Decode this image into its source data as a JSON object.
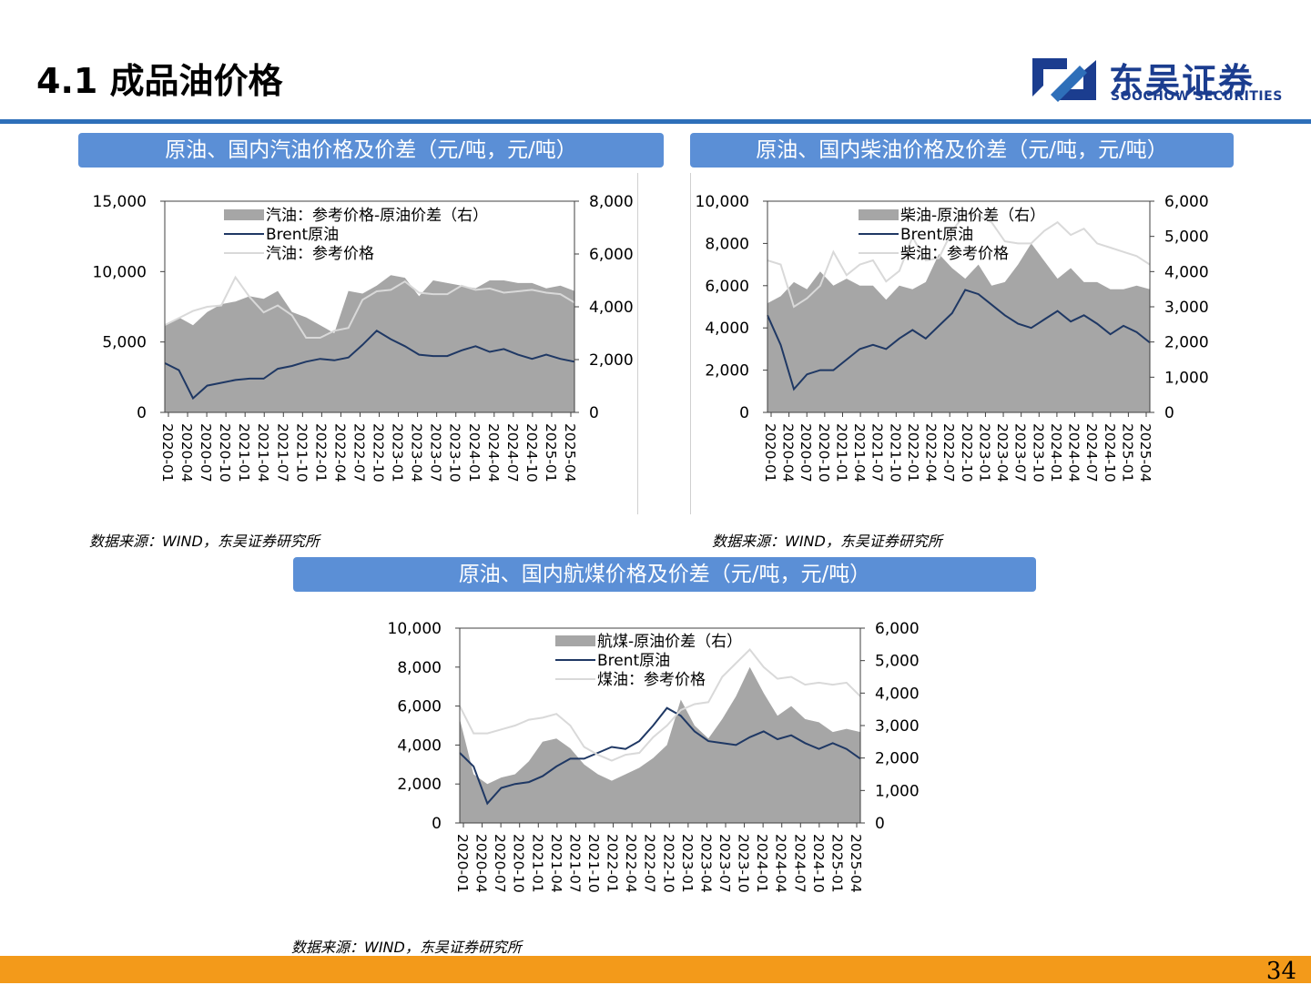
{
  "page": {
    "title": "4.1 成品油价格",
    "page_number": "34"
  },
  "logo": {
    "cn": "东吴证券",
    "en": "SOOCHOW SECURITIES",
    "colors": {
      "brand": "#1b3d8f",
      "accent": "#2e6fb9"
    }
  },
  "colors": {
    "header_bg": "#5b8fd6",
    "footer": "#f39a1a",
    "spread_fill": "#a6a6a6",
    "brent_line": "#1f3864",
    "product_line": "#d9d9d9"
  },
  "panels": [
    {
      "header": "原油、国内汽油价格及价差（元/吨，元/吨）",
      "source": "数据来源：WIND，东吴证券研究所"
    },
    {
      "header": "原油、国内柴油价格及价差（元/吨，元/吨）",
      "source": "数据来源：WIND，东吴证券研究所"
    },
    {
      "header": "原油、国内航煤价格及价差（元/吨，元/吨）",
      "source": "数据来源：WIND，东吴证券研究所"
    }
  ],
  "chart_data": [
    {
      "type": "line",
      "x_labels": [
        "2020-01",
        "2020-04",
        "2020-07",
        "2020-10",
        "2021-01",
        "2021-04",
        "2021-07",
        "2021-10",
        "2022-01",
        "2022-04",
        "2022-07",
        "2022-10",
        "2023-01",
        "2023-04",
        "2023-07",
        "2023-10",
        "2024-01",
        "2024-04",
        "2024-07",
        "2024-10",
        "2025-01",
        "2025-04"
      ],
      "left_axis": {
        "ylim": [
          0,
          15000
        ],
        "ticks": [
          "0",
          "5,000",
          "10,000",
          "15,000"
        ]
      },
      "right_axis": {
        "ylim": [
          0,
          8000
        ],
        "ticks": [
          "0",
          "2,000",
          "4,000",
          "6,000",
          "8,000"
        ]
      },
      "series": [
        {
          "name": "汽油：参考价格-原油价差（右）",
          "kind": "area",
          "axis": "right",
          "values": [
            3300,
            3600,
            3300,
            3800,
            4100,
            4200,
            4400,
            4300,
            4600,
            3800,
            3600,
            3300,
            3000,
            4600,
            4500,
            4800,
            5200,
            5100,
            4400,
            5000,
            4900,
            4800,
            4700,
            5000,
            5000,
            4900,
            4900,
            4700,
            4800,
            4600
          ]
        },
        {
          "name": "Brent原油",
          "kind": "line",
          "axis": "left",
          "values": [
            3500,
            3000,
            1000,
            1900,
            2100,
            2300,
            2400,
            2400,
            3100,
            3300,
            3600,
            3800,
            3700,
            3900,
            4800,
            5800,
            5200,
            4700,
            4100,
            4000,
            4000,
            4400,
            4700,
            4300,
            4500,
            4100,
            3800,
            4100,
            3800,
            3600
          ]
        },
        {
          "name": "汽油：参考价格",
          "kind": "line",
          "axis": "left",
          "values": [
            6200,
            6700,
            7200,
            7500,
            7600,
            9600,
            8200,
            7100,
            7600,
            6900,
            5300,
            5300,
            5800,
            6000,
            8000,
            8600,
            8700,
            9300,
            8500,
            8400,
            8400,
            9000,
            8700,
            8800,
            8500,
            8600,
            8700,
            8500,
            8400,
            7800
          ]
        }
      ]
    },
    {
      "type": "line",
      "x_labels": [
        "2020-01",
        "2020-04",
        "2020-07",
        "2020-10",
        "2021-01",
        "2021-04",
        "2021-07",
        "2021-10",
        "2022-01",
        "2022-04",
        "2022-07",
        "2022-10",
        "2023-01",
        "2023-04",
        "2023-07",
        "2023-10",
        "2024-01",
        "2024-04",
        "2024-07",
        "2024-10",
        "2025-01",
        "2025-04"
      ],
      "left_axis": {
        "ylim": [
          0,
          10000
        ],
        "ticks": [
          "0",
          "2,000",
          "4,000",
          "6,000",
          "8,000",
          "10,000"
        ]
      },
      "right_axis": {
        "ylim": [
          0,
          6000
        ],
        "ticks": [
          "0",
          "1,000",
          "2,000",
          "3,000",
          "4,000",
          "5,000",
          "6,000"
        ]
      },
      "series": [
        {
          "name": "柴油-原油价差（右）",
          "kind": "area",
          "axis": "right",
          "values": [
            3100,
            3300,
            3700,
            3500,
            4000,
            3600,
            3800,
            3600,
            3600,
            3200,
            3600,
            3500,
            3700,
            4500,
            4100,
            3800,
            4200,
            3600,
            3700,
            4200,
            4800,
            4300,
            3800,
            4100,
            3700,
            3700,
            3500,
            3500,
            3600,
            3500
          ]
        },
        {
          "name": "Brent原油",
          "kind": "line",
          "axis": "left",
          "values": [
            4600,
            3200,
            1100,
            1800,
            2000,
            2000,
            2500,
            3000,
            3200,
            3000,
            3500,
            3900,
            3500,
            4100,
            4700,
            5800,
            5600,
            5100,
            4600,
            4200,
            4000,
            4400,
            4800,
            4300,
            4600,
            4200,
            3700,
            4100,
            3800,
            3300
          ]
        },
        {
          "name": "柴油：参考价格",
          "kind": "line",
          "axis": "left",
          "values": [
            7200,
            7000,
            5000,
            5400,
            6000,
            7600,
            6500,
            7000,
            7200,
            6200,
            6700,
            8300,
            7200,
            7300,
            8600,
            9400,
            9300,
            9000,
            8100,
            8000,
            8000,
            8600,
            9000,
            8400,
            8700,
            8000,
            7800,
            7600,
            7400,
            7000
          ]
        }
      ]
    },
    {
      "type": "line",
      "x_labels": [
        "2020-01",
        "2020-04",
        "2020-07",
        "2020-10",
        "2021-01",
        "2021-04",
        "2021-07",
        "2021-10",
        "2022-01",
        "2022-04",
        "2022-07",
        "2022-10",
        "2023-01",
        "2023-04",
        "2023-07",
        "2023-10",
        "2024-01",
        "2024-04",
        "2024-07",
        "2024-10",
        "2025-01",
        "2025-04"
      ],
      "left_axis": {
        "ylim": [
          0,
          10000
        ],
        "ticks": [
          "0",
          "2,000",
          "4,000",
          "6,000",
          "8,000",
          "10,000"
        ]
      },
      "right_axis": {
        "ylim": [
          0,
          6000
        ],
        "ticks": [
          "0",
          "1,000",
          "2,000",
          "3,000",
          "4,000",
          "5,000",
          "6,000"
        ]
      },
      "series": [
        {
          "name": "航煤-原油价差（右）",
          "kind": "area",
          "axis": "right",
          "values": [
            3200,
            1500,
            1200,
            1400,
            1500,
            1900,
            2500,
            2600,
            2300,
            1800,
            1500,
            1300,
            1500,
            1700,
            2000,
            2400,
            3800,
            3000,
            2600,
            3200,
            3900,
            4800,
            4000,
            3300,
            3600,
            3200,
            3100,
            2800,
            2900,
            2800
          ]
        },
        {
          "name": "Brent原油",
          "kind": "line",
          "axis": "left",
          "values": [
            3600,
            2900,
            1000,
            1800,
            2000,
            2100,
            2400,
            2900,
            3300,
            3300,
            3600,
            3900,
            3800,
            4200,
            5000,
            5900,
            5500,
            4700,
            4200,
            4100,
            4000,
            4400,
            4700,
            4300,
            4500,
            4100,
            3800,
            4100,
            3800,
            3300
          ]
        },
        {
          "name": "煤油：参考价格",
          "kind": "line",
          "axis": "left",
          "values": [
            6000,
            4600,
            4600,
            4800,
            5000,
            5300,
            5400,
            5600,
            5000,
            3900,
            3500,
            3200,
            3500,
            3600,
            4400,
            5000,
            5800,
            6100,
            6200,
            7500,
            8200,
            8900,
            8000,
            7400,
            7500,
            7100,
            7200,
            7100,
            7200,
            6500
          ]
        }
      ]
    }
  ]
}
